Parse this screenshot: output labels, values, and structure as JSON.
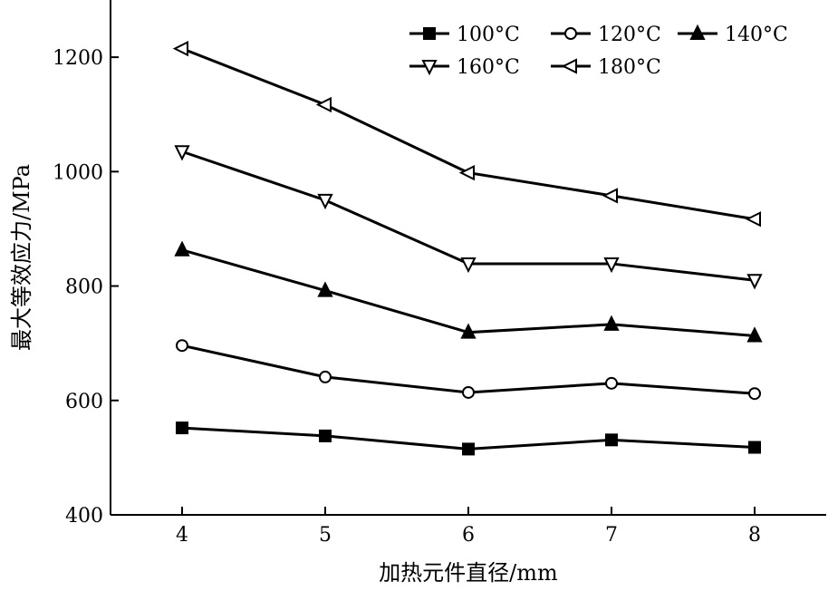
{
  "chart_data": {
    "type": "line",
    "title": "",
    "xlabel": "加热元件直径/mm",
    "ylabel": "最大等效应力/MPa",
    "x": [
      4,
      5,
      6,
      7,
      8
    ],
    "xlim": [
      3.5,
      8.5
    ],
    "ylim": [
      400,
      1300
    ],
    "xticks": [
      4,
      5,
      6,
      7,
      8
    ],
    "yticks": [
      400,
      600,
      800,
      1000,
      1200
    ],
    "grid": false,
    "legend_position": "top-right",
    "series": [
      {
        "name": "100°C",
        "marker": "filled-square",
        "values": [
          552,
          538,
          515,
          531,
          518
        ]
      },
      {
        "name": "120°C",
        "marker": "open-circle",
        "values": [
          696,
          641,
          614,
          630,
          612
        ]
      },
      {
        "name": "140°C",
        "marker": "filled-triangle-up",
        "values": [
          863,
          792,
          719,
          733,
          713
        ]
      },
      {
        "name": "160°C",
        "marker": "open-triangle-down",
        "values": [
          1035,
          950,
          839,
          839,
          810
        ]
      },
      {
        "name": "180°C",
        "marker": "open-triangle-left",
        "values": [
          1215,
          1117,
          998,
          958,
          917
        ]
      }
    ]
  }
}
